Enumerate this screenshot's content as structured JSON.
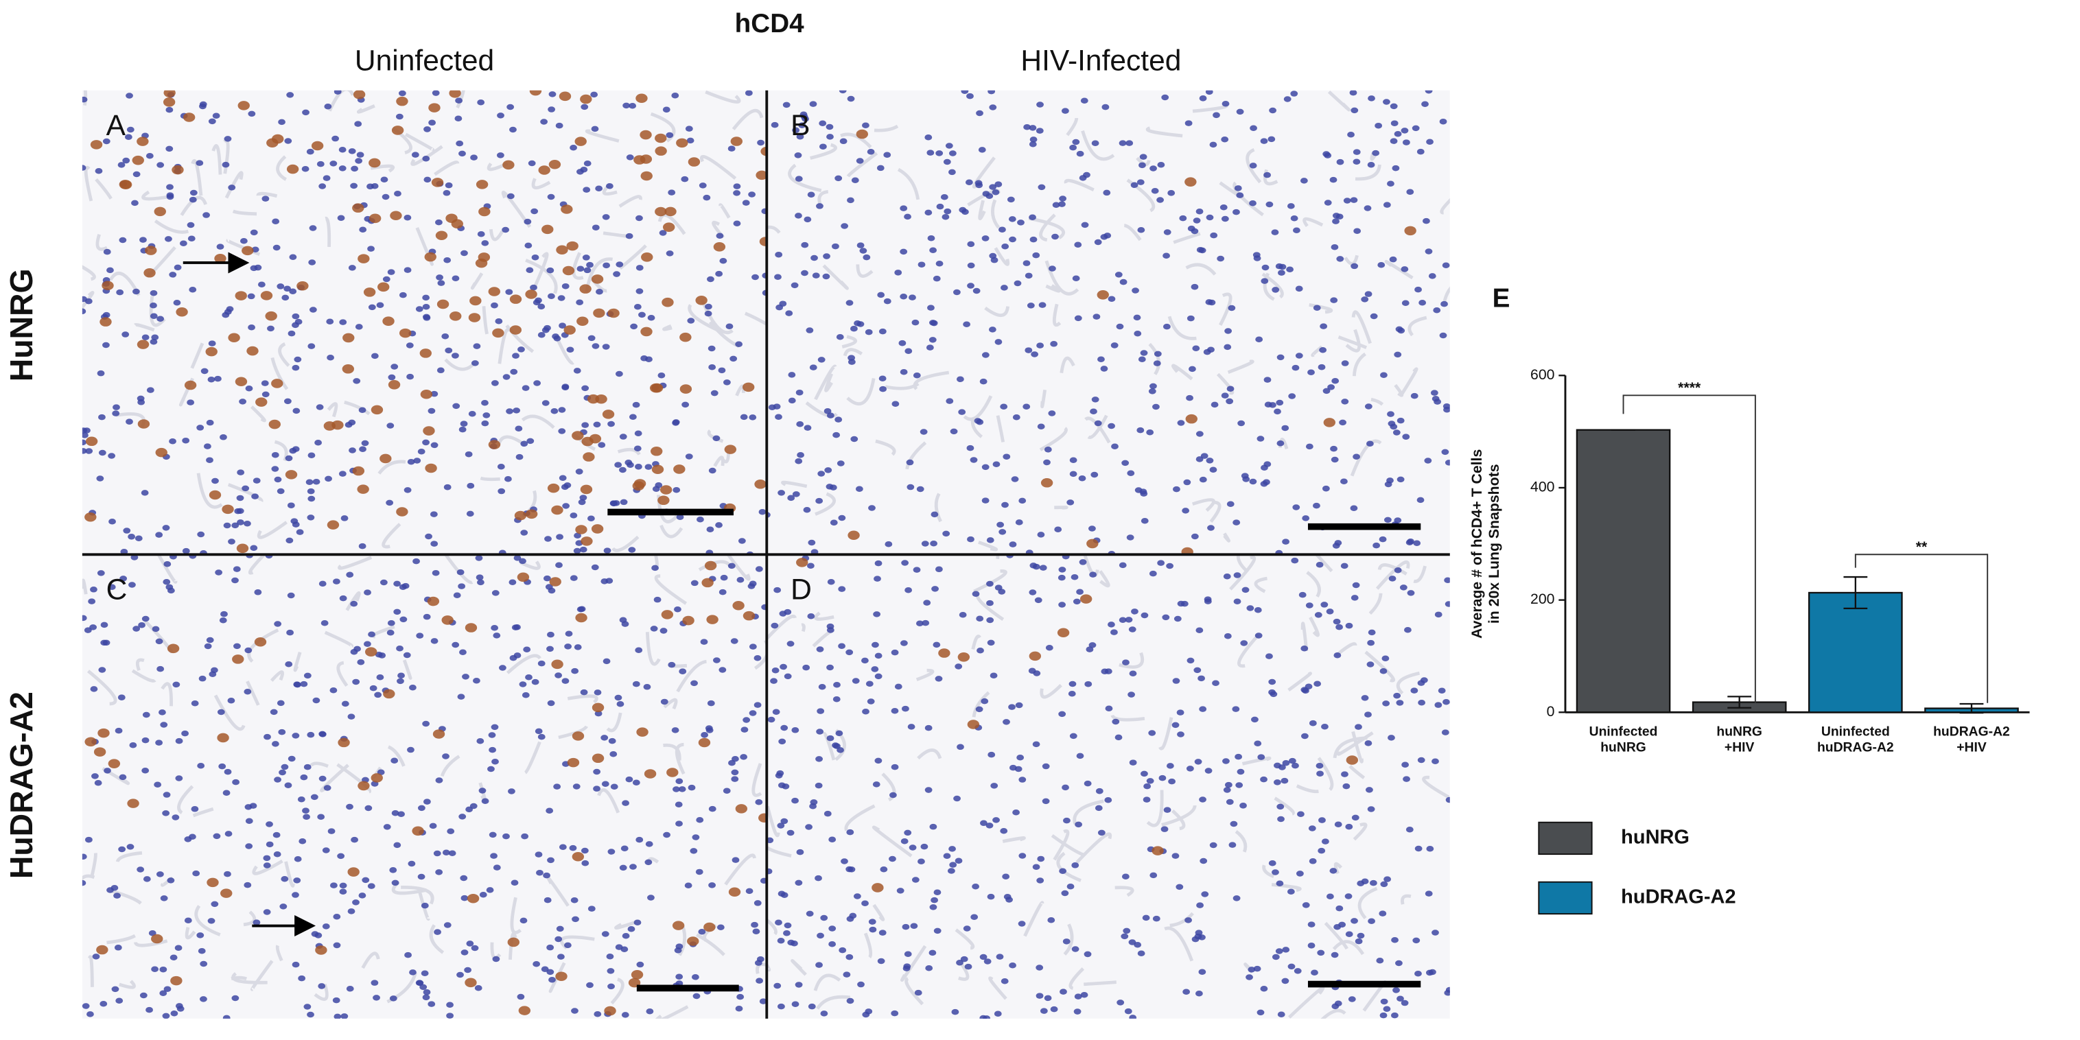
{
  "figure_title": "hCD4",
  "column_labels": [
    "Uninfected",
    "HIV-Infected"
  ],
  "row_labels": [
    "HuNRG",
    "HuDRAG-A2"
  ],
  "panel_labels": [
    "A",
    "B",
    "C",
    "D",
    "E"
  ],
  "chart_data": {
    "type": "bar",
    "y_label": [
      "Average # of hCD4+ T Cells",
      "in 20x Lung Snapshots"
    ],
    "categories": [
      [
        "Uninfected",
        "huNRG"
      ],
      [
        "huNRG",
        "+HIV"
      ],
      [
        "Uninfected",
        "huDRAG-A2"
      ],
      [
        "huDRAG-A2",
        "+HIV"
      ]
    ],
    "values": [
      503,
      18,
      213,
      7
    ],
    "errors": [
      0,
      10,
      28,
      8
    ],
    "colors": [
      "#4a4d50",
      "#4a4d50",
      "#0f78a6",
      "#0f78a6"
    ],
    "legend": [
      {
        "name": "huNRG",
        "color": "#4a4d50"
      },
      {
        "name": "huDRAG-A2",
        "color": "#0f78a6"
      }
    ],
    "annotations": [
      "****",
      "**"
    ],
    "ylim": [
      0,
      600
    ],
    "yticks": [
      0,
      200,
      400,
      600
    ]
  }
}
